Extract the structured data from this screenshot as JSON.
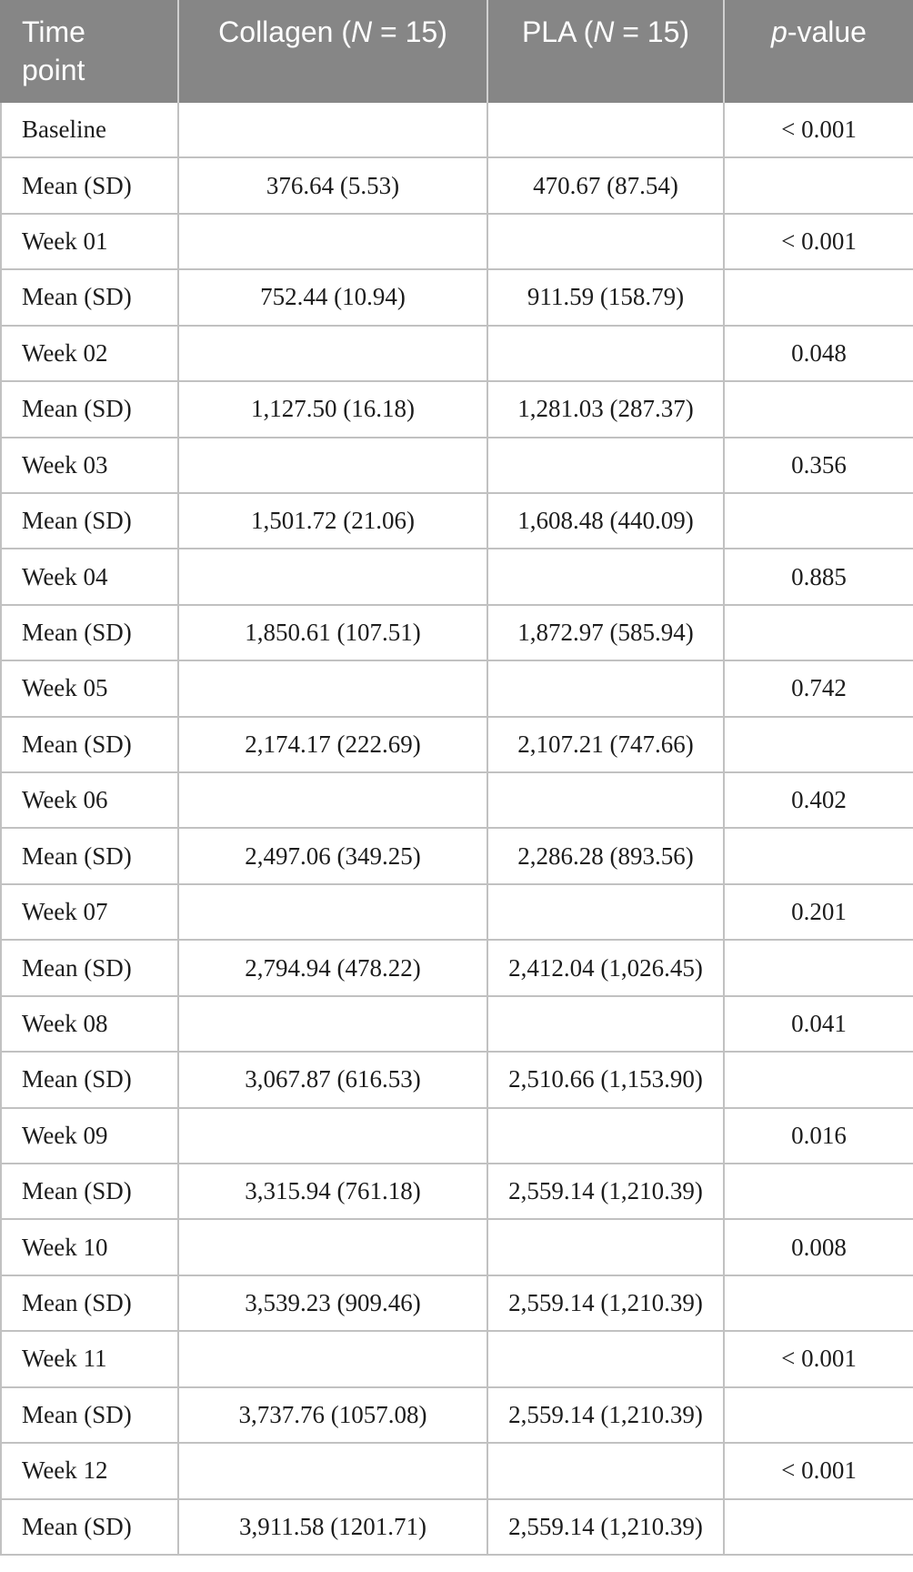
{
  "style": {
    "header_bg": "#868686",
    "header_text": "#ffffff",
    "body_text": "#1c1c1c",
    "border_color": "#c1c1c1"
  },
  "table": {
    "header": {
      "time_point": "Time\npoint",
      "collagen": {
        "pre": "Collagen (",
        "italic": "N",
        "post": " = 15)"
      },
      "pla": {
        "pre": "PLA (",
        "italic": "N",
        "post": " = 15)"
      },
      "p_value": {
        "pre": "",
        "italic": "p",
        "post": "-value"
      }
    },
    "rows": [
      {
        "label": "Baseline",
        "collagen": "",
        "pla": "",
        "p_value": "< 0.001"
      },
      {
        "label": "Mean (SD)",
        "collagen": "376.64 (5.53)",
        "pla": "470.67 (87.54)",
        "p_value": ""
      },
      {
        "label": "Week 01",
        "collagen": "",
        "pla": "",
        "p_value": "< 0.001"
      },
      {
        "label": "Mean (SD)",
        "collagen": "752.44 (10.94)",
        "pla": "911.59 (158.79)",
        "p_value": ""
      },
      {
        "label": "Week 02",
        "collagen": "",
        "pla": "",
        "p_value": "0.048"
      },
      {
        "label": "Mean (SD)",
        "collagen": "1,127.50 (16.18)",
        "pla": "1,281.03 (287.37)",
        "p_value": ""
      },
      {
        "label": "Week 03",
        "collagen": "",
        "pla": "",
        "p_value": "0.356"
      },
      {
        "label": "Mean (SD)",
        "collagen": "1,501.72 (21.06)",
        "pla": "1,608.48 (440.09)",
        "p_value": ""
      },
      {
        "label": "Week 04",
        "collagen": "",
        "pla": "",
        "p_value": "0.885"
      },
      {
        "label": "Mean (SD)",
        "collagen": "1,850.61 (107.51)",
        "pla": "1,872.97 (585.94)",
        "p_value": ""
      },
      {
        "label": "Week 05",
        "collagen": "",
        "pla": "",
        "p_value": "0.742"
      },
      {
        "label": "Mean (SD)",
        "collagen": "2,174.17 (222.69)",
        "pla": "2,107.21 (747.66)",
        "p_value": ""
      },
      {
        "label": "Week 06",
        "collagen": "",
        "pla": "",
        "p_value": "0.402"
      },
      {
        "label": "Mean (SD)",
        "collagen": "2,497.06 (349.25)",
        "pla": "2,286.28 (893.56)",
        "p_value": ""
      },
      {
        "label": "Week 07",
        "collagen": "",
        "pla": "",
        "p_value": "0.201"
      },
      {
        "label": "Mean (SD)",
        "collagen": "2,794.94 (478.22)",
        "pla": "2,412.04 (1,026.45)",
        "p_value": ""
      },
      {
        "label": "Week 08",
        "collagen": "",
        "pla": "",
        "p_value": "0.041"
      },
      {
        "label": "Mean (SD)",
        "collagen": "3,067.87 (616.53)",
        "pla": "2,510.66 (1,153.90)",
        "p_value": ""
      },
      {
        "label": "Week 09",
        "collagen": "",
        "pla": "",
        "p_value": "0.016"
      },
      {
        "label": "Mean (SD)",
        "collagen": "3,315.94 (761.18)",
        "pla": "2,559.14 (1,210.39)",
        "p_value": ""
      },
      {
        "label": "Week 10",
        "collagen": "",
        "pla": "",
        "p_value": "0.008"
      },
      {
        "label": "Mean (SD)",
        "collagen": "3,539.23 (909.46)",
        "pla": "2,559.14 (1,210.39)",
        "p_value": ""
      },
      {
        "label": "Week 11",
        "collagen": "",
        "pla": "",
        "p_value": "< 0.001"
      },
      {
        "label": "Mean (SD)",
        "collagen": "3,737.76 (1057.08)",
        "pla": "2,559.14 (1,210.39)",
        "p_value": ""
      },
      {
        "label": "Week 12",
        "collagen": "",
        "pla": "",
        "p_value": "< 0.001"
      },
      {
        "label": "Mean (SD)",
        "collagen": "3,911.58 (1201.71)",
        "pla": "2,559.14 (1,210.39)",
        "p_value": ""
      }
    ]
  }
}
